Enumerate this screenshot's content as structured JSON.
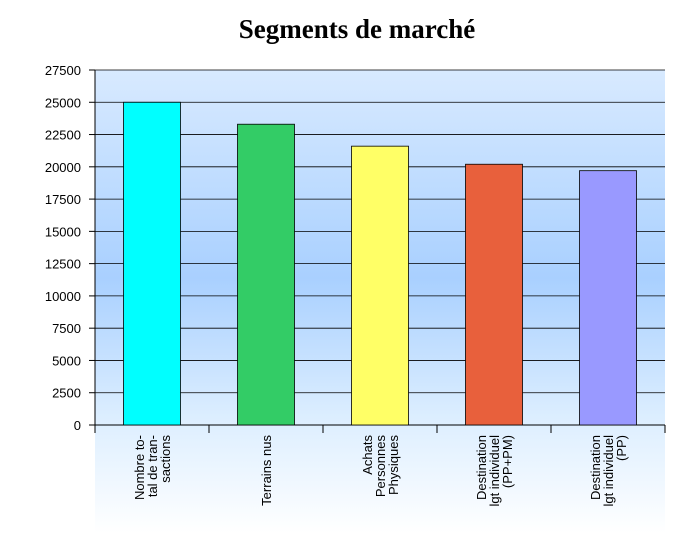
{
  "chart_data": {
    "type": "bar",
    "title": "Segments de marché",
    "categories": [
      "Nombre to-\ntal de tran-\nsactions",
      "Terrains nus",
      "Achats\nPersonnes\nPhysiques",
      "Destination\nlgt individuel\n(PP+PM)",
      "Destination\nlgt individuel\n(PP)"
    ],
    "values": [
      25000,
      23300,
      21600,
      20200,
      19700
    ],
    "colors": [
      "#00ffff",
      "#33cc66",
      "#ffff66",
      "#e8603c",
      "#9999ff"
    ],
    "ylim": [
      0,
      27500
    ],
    "yticks": [
      0,
      2500,
      5000,
      7500,
      10000,
      12500,
      15000,
      17500,
      20000,
      22500,
      25000,
      27500
    ],
    "grid": true
  }
}
